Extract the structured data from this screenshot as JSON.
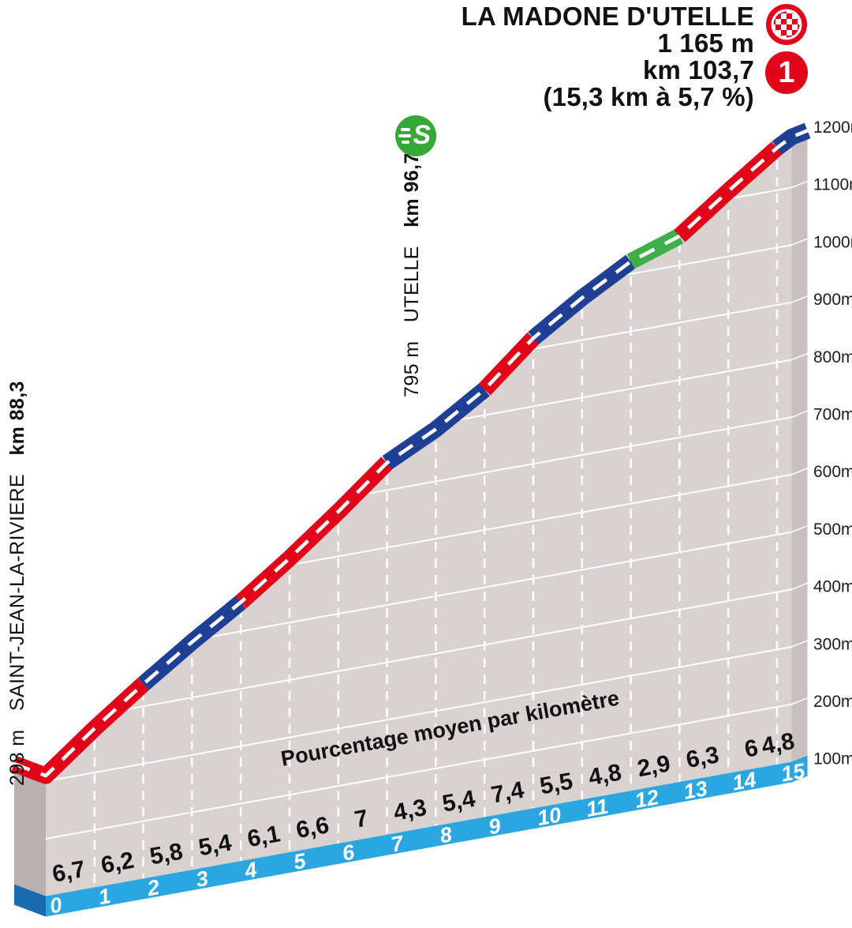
{
  "header": {
    "title": "LA MADONE D'UTELLE",
    "altitude": "1 165 m",
    "km_mark": "km 103,7",
    "length_gradient": "(15,3 km à 5,7 %)",
    "category": "1"
  },
  "start_label": {
    "elevation": "298 m",
    "name": "SAINT-JEAN-LA-RIVIERE",
    "km": "km 88,3"
  },
  "intermediate_label": {
    "elevation": "795 m",
    "name": "UTELLE",
    "km": "km 96,7",
    "sprint_letter": "S"
  },
  "band_caption": "Pourcentage moyen par kilomètre",
  "chart_data": {
    "type": "area",
    "title": "La Madone d'Utelle climb profile",
    "start_elevation_m": 298,
    "summit_elevation_m": 1165,
    "length_km": 15.3,
    "avg_gradient_pct": 5.7,
    "km_ticks": [
      0,
      1,
      2,
      3,
      4,
      5,
      6,
      7,
      8,
      9,
      10,
      11,
      12,
      13,
      14,
      15
    ],
    "segment_gradient_labels": [
      "6,7",
      "6,2",
      "5,8",
      "5,4",
      "6,1",
      "6,6",
      "7",
      "4,3",
      "5,4",
      "7,4",
      "5,5",
      "4,8",
      "2,9",
      "6,3",
      "6",
      "4,8"
    ],
    "segment_gradients_pct": [
      6.7,
      6.2,
      5.8,
      5.4,
      6.1,
      6.6,
      7,
      4.3,
      5.4,
      7.4,
      5.5,
      4.8,
      2.9,
      6.3,
      6,
      4.8
    ],
    "segment_colors": [
      "red",
      "red",
      "blue",
      "blue",
      "red",
      "red",
      "red",
      "blue",
      "blue",
      "red",
      "blue",
      "blue",
      "green",
      "red",
      "red",
      "blue"
    ],
    "elevation_ticks_m": [
      100,
      200,
      300,
      400,
      500,
      600,
      700,
      800,
      900,
      1000,
      1100,
      1200
    ],
    "elevation_unit": "m",
    "ylim": [
      100,
      1200
    ],
    "grid": true,
    "colors": {
      "red": "#e2051a",
      "blue": "#1e3f94",
      "green": "#3fae49",
      "wall": "#d9d2d0",
      "left_face": "#b9b1af",
      "right_face": "#c8c0be",
      "band_blue": "#2aa7e0",
      "band_cap": "#1a6ab0",
      "grid_white": "#ffffff",
      "text_dark": "#1d1d1b"
    }
  }
}
